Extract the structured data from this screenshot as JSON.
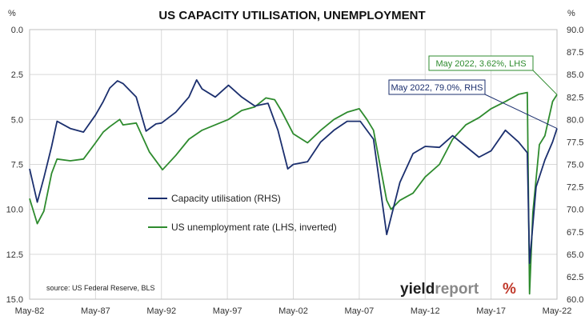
{
  "chart_data": {
    "type": "line",
    "title": "US CAPACITY UTILISATION, UNEMPLOYMENT",
    "left_axis": {
      "unit_label": "%",
      "ylim": [
        15.0,
        0.0
      ],
      "inverted": true,
      "ticks": [
        "0.0",
        "2.5",
        "5.0",
        "7.5",
        "10.0",
        "12.5",
        "15.0"
      ]
    },
    "right_axis": {
      "unit_label": "%",
      "ylim": [
        60.0,
        90.0
      ],
      "ticks": [
        "60.0",
        "62.5",
        "65.0",
        "67.5",
        "70.0",
        "72.5",
        "75.0",
        "77.5",
        "80.0",
        "82.5",
        "85.0",
        "87.5",
        "90.0"
      ]
    },
    "x_tick_labels": [
      "May-82",
      "May-87",
      "May-92",
      "May-97",
      "May-02",
      "May-07",
      "May-12",
      "May-17",
      "May-22"
    ],
    "x_range": [
      "1982-05",
      "2022-05"
    ],
    "grid": true,
    "legend_position": "center",
    "series": [
      {
        "name": "Capacity utilisation (RHS)",
        "axis": "right",
        "color": "#1b2f6e",
        "points": [
          [
            "1982-05",
            74.5
          ],
          [
            "1982-12",
            70.8
          ],
          [
            "1983-06",
            73.5
          ],
          [
            "1984-01",
            77.0
          ],
          [
            "1984-06",
            79.8
          ],
          [
            "1985-06",
            79.0
          ],
          [
            "1986-06",
            78.6
          ],
          [
            "1987-05",
            80.5
          ],
          [
            "1987-12",
            82.0
          ],
          [
            "1988-06",
            83.5
          ],
          [
            "1989-01",
            84.3
          ],
          [
            "1989-06",
            84.0
          ],
          [
            "1990-06",
            82.5
          ],
          [
            "1991-03",
            78.7
          ],
          [
            "1991-12",
            79.5
          ],
          [
            "1992-05",
            79.6
          ],
          [
            "1993-06",
            80.8
          ],
          [
            "1994-06",
            82.5
          ],
          [
            "1995-01",
            84.4
          ],
          [
            "1995-06",
            83.4
          ],
          [
            "1996-06",
            82.5
          ],
          [
            "1997-06",
            83.8
          ],
          [
            "1998-06",
            82.5
          ],
          [
            "1999-06",
            81.5
          ],
          [
            "2000-06",
            81.8
          ],
          [
            "2001-03",
            78.8
          ],
          [
            "2001-12",
            74.5
          ],
          [
            "2002-05",
            75.0
          ],
          [
            "2003-06",
            75.3
          ],
          [
            "2004-06",
            77.5
          ],
          [
            "2005-06",
            78.8
          ],
          [
            "2006-06",
            79.8
          ],
          [
            "2007-06",
            79.8
          ],
          [
            "2008-06",
            77.8
          ],
          [
            "2009-06",
            67.2
          ],
          [
            "2010-06",
            73.0
          ],
          [
            "2011-06",
            76.2
          ],
          [
            "2012-05",
            77.0
          ],
          [
            "2013-06",
            76.9
          ],
          [
            "2014-06",
            78.2
          ],
          [
            "2015-06",
            77.0
          ],
          [
            "2016-06",
            75.8
          ],
          [
            "2017-05",
            76.5
          ],
          [
            "2018-06",
            78.8
          ],
          [
            "2019-06",
            77.5
          ],
          [
            "2020-02",
            76.3
          ],
          [
            "2020-04",
            64.0
          ],
          [
            "2020-10",
            72.5
          ],
          [
            "2021-06",
            75.5
          ],
          [
            "2022-01",
            77.5
          ],
          [
            "2022-05",
            79.0
          ]
        ]
      },
      {
        "name": "US unemployment rate (LHS, inverted)",
        "axis": "left",
        "color": "#2e8b2e",
        "points": [
          [
            "1982-05",
            9.4
          ],
          [
            "1982-12",
            10.8
          ],
          [
            "1983-06",
            10.1
          ],
          [
            "1984-01",
            8.0
          ],
          [
            "1984-06",
            7.2
          ],
          [
            "1985-06",
            7.3
          ],
          [
            "1986-06",
            7.2
          ],
          [
            "1987-05",
            6.3
          ],
          [
            "1987-12",
            5.7
          ],
          [
            "1988-06",
            5.4
          ],
          [
            "1989-03",
            5.0
          ],
          [
            "1989-06",
            5.3
          ],
          [
            "1990-06",
            5.2
          ],
          [
            "1991-06",
            6.8
          ],
          [
            "1992-06",
            7.8
          ],
          [
            "1993-06",
            7.0
          ],
          [
            "1994-06",
            6.1
          ],
          [
            "1995-06",
            5.6
          ],
          [
            "1996-06",
            5.3
          ],
          [
            "1997-06",
            5.0
          ],
          [
            "1998-06",
            4.5
          ],
          [
            "1999-06",
            4.3
          ],
          [
            "2000-04",
            3.8
          ],
          [
            "2000-12",
            3.9
          ],
          [
            "2001-06",
            4.5
          ],
          [
            "2002-05",
            5.8
          ],
          [
            "2003-06",
            6.3
          ],
          [
            "2004-06",
            5.6
          ],
          [
            "2005-06",
            5.0
          ],
          [
            "2006-06",
            4.6
          ],
          [
            "2007-05",
            4.4
          ],
          [
            "2007-12",
            5.0
          ],
          [
            "2008-06",
            5.6
          ],
          [
            "2009-06",
            9.5
          ],
          [
            "2009-10",
            10.0
          ],
          [
            "2010-06",
            9.5
          ],
          [
            "2011-06",
            9.1
          ],
          [
            "2012-05",
            8.2
          ],
          [
            "2013-06",
            7.5
          ],
          [
            "2014-06",
            6.1
          ],
          [
            "2015-06",
            5.3
          ],
          [
            "2016-06",
            4.9
          ],
          [
            "2017-05",
            4.4
          ],
          [
            "2018-06",
            4.0
          ],
          [
            "2019-06",
            3.6
          ],
          [
            "2020-02",
            3.5
          ],
          [
            "2020-04",
            14.7
          ],
          [
            "2020-07",
            10.2
          ],
          [
            "2021-01",
            6.4
          ],
          [
            "2021-06",
            5.9
          ],
          [
            "2022-01",
            4.0
          ],
          [
            "2022-05",
            3.62
          ]
        ]
      }
    ],
    "annotations": [
      {
        "text": "May 2022, 3.62%, LHS",
        "color": "#2e8b2e",
        "series": 1
      },
      {
        "text": "May 2022, 79.0%, RHS",
        "color": "#1b2f6e",
        "series": 0
      }
    ]
  },
  "source_note": "source: US Federal Reserve, BLS",
  "logo": {
    "word1": "yield",
    "word2": "report",
    "symbol": "%"
  }
}
